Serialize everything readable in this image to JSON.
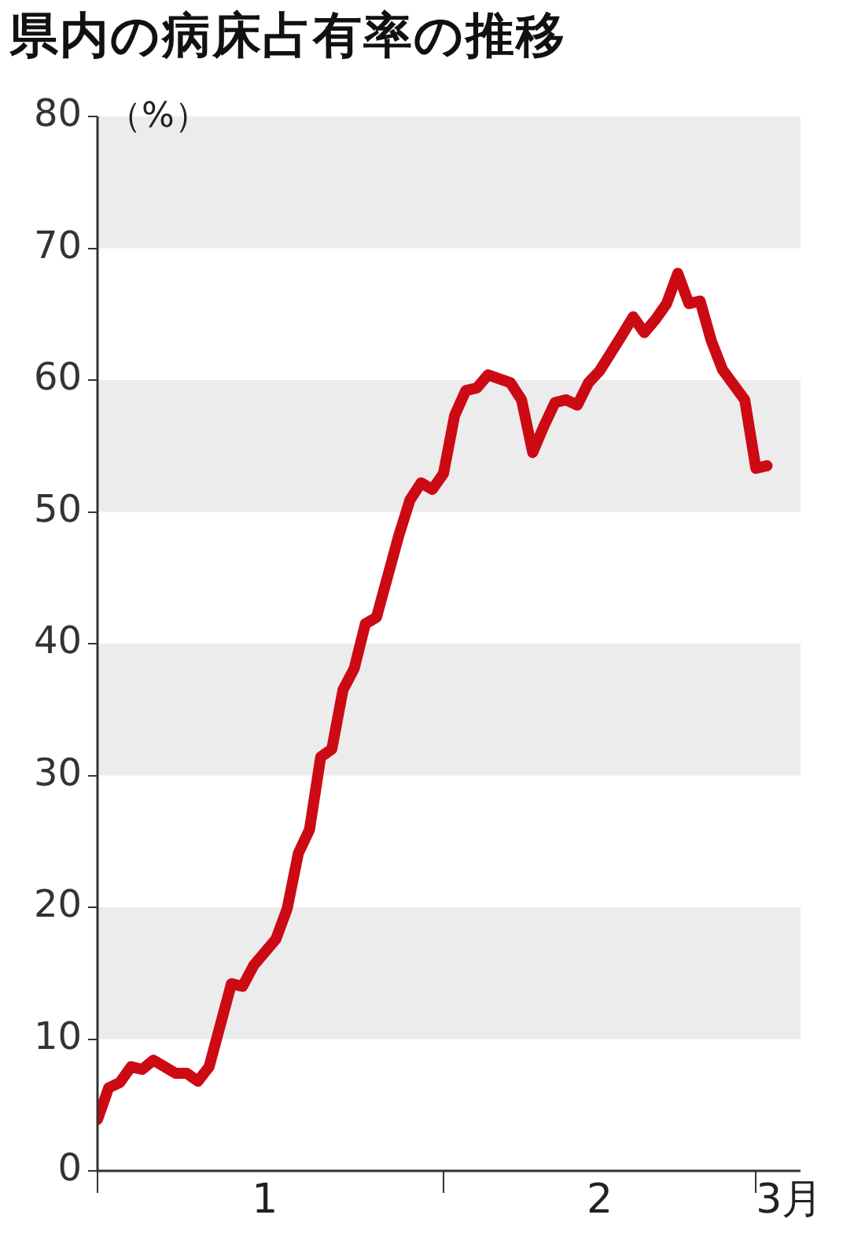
{
  "chart_data": {
    "type": "line",
    "title": "県内の病床占有率の推移",
    "ylabel": "（%）",
    "x": [
      "--01-01",
      "--01-02",
      "--01-03",
      "--01-04",
      "--01-05",
      "--01-06",
      "--01-08",
      "--01-09",
      "--01-10",
      "--01-11",
      "--01-13",
      "--01-14",
      "--01-15",
      "--01-17",
      "--01-18",
      "--01-19",
      "--01-20",
      "--01-21",
      "--01-22",
      "--01-23",
      "--01-24",
      "--01-25",
      "--01-26",
      "--01-28",
      "--01-29",
      "--01-30",
      "--01-31",
      "--02-01",
      "--02-02",
      "--02-03",
      "--02-04",
      "--02-05",
      "--02-07",
      "--02-08",
      "--02-09",
      "--02-10",
      "--02-11",
      "--02-12",
      "--02-13",
      "--02-14",
      "--02-15",
      "--02-17",
      "--02-18",
      "--02-19",
      "--02-20",
      "--02-21",
      "--02-22",
      "--02-23",
      "--02-24",
      "--02-25",
      "--02-26",
      "--02-28",
      "--03-01",
      "--03-02"
    ],
    "series": [
      {
        "color": "#cc0a14",
        "values": [
          3.9,
          6.3,
          6.7,
          7.9,
          7.7,
          8.4,
          7.4,
          7.4,
          6.8,
          7.9,
          14.2,
          14.0,
          15.6,
          17.6,
          19.9,
          24.1,
          25.9,
          31.4,
          32.0,
          36.5,
          38.1,
          41.5,
          42.0,
          48.2,
          50.9,
          52.2,
          51.7,
          52.9,
          57.3,
          59.2,
          59.4,
          60.4,
          59.8,
          58.5,
          54.5,
          56.5,
          58.3,
          58.5,
          58.1,
          59.8,
          60.7,
          63.4,
          64.8,
          63.6,
          64.6,
          65.8,
          68.1,
          65.8,
          66.0,
          63.0,
          60.8,
          58.5,
          53.3,
          53.5
        ]
      }
    ],
    "xlim": [
      "--01-01",
      "--03-05"
    ],
    "xticks": [
      {
        "value": "--01-01",
        "label": null
      },
      {
        "value": "--01-16",
        "label": "1"
      },
      {
        "value": "--02-01",
        "label": null
      },
      {
        "value": "--02-15",
        "label": "2"
      },
      {
        "value": "--03-01",
        "label": null
      },
      {
        "value": "--03-04",
        "label": "3月"
      }
    ],
    "ylim": [
      0,
      80
    ],
    "yticks": [
      0,
      10,
      20,
      30,
      40,
      50,
      60,
      70,
      80
    ],
    "bands": [
      {
        "axis": "y",
        "from": 10,
        "to": 20,
        "color": "#ececec"
      },
      {
        "axis": "y",
        "from": 30,
        "to": 40,
        "color": "#ececec"
      },
      {
        "axis": "y",
        "from": 50,
        "to": 60,
        "color": "#ececec"
      },
      {
        "axis": "y",
        "from": 70,
        "to": 80,
        "color": "#ececec"
      }
    ],
    "grid": false,
    "legend": false,
    "marker": "none",
    "line_style": "solid"
  }
}
